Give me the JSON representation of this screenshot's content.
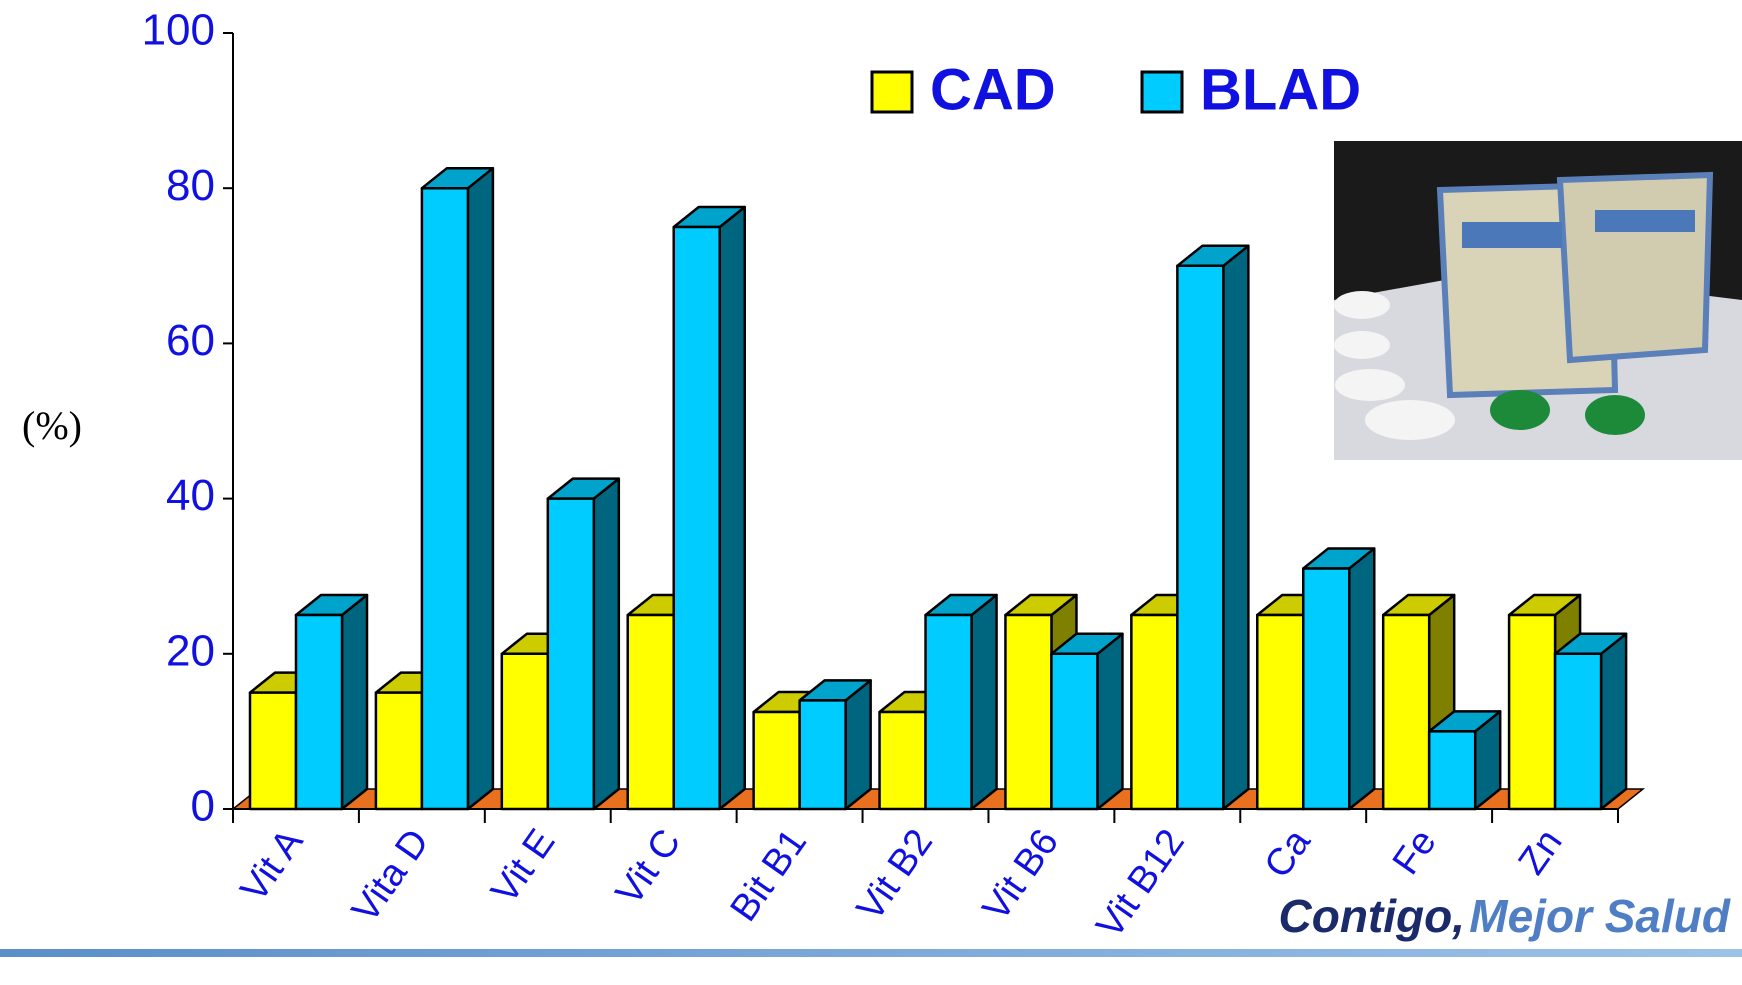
{
  "chart_data": {
    "type": "bar3d",
    "y_label": "(%)",
    "categories": [
      "Vit A",
      "Vita D",
      "Vit E",
      "Vit C",
      "Bit B1",
      "Vit B2",
      "Vit B6",
      "Vit B12",
      "Ca",
      "Fe",
      "Zn"
    ],
    "series": [
      {
        "name": "CAD",
        "color": "#ffff00",
        "values": [
          15,
          15,
          20,
          25,
          12.5,
          12.5,
          25,
          25,
          25,
          25,
          25
        ]
      },
      {
        "name": "BLAD",
        "color": "#00ccff",
        "values": [
          25,
          80,
          40,
          75,
          14,
          25,
          20,
          70,
          31,
          10,
          20
        ]
      }
    ],
    "ylim": [
      0,
      100
    ],
    "yticks": [
      0,
      20,
      40,
      60,
      80,
      100
    ],
    "legend": "top"
  },
  "footer": {
    "brand": "Contigo,",
    "slogan": "Mejor Salud"
  }
}
